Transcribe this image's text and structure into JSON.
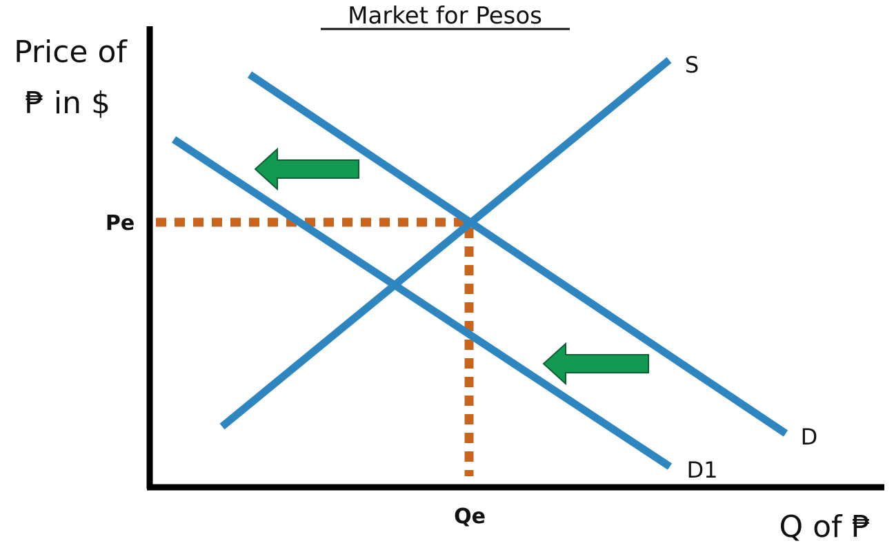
{
  "title": "Market for Pesos",
  "y_axis_title_line1": "Price of",
  "y_axis_title_line2": "₱ in $",
  "x_axis_title": "Q of ₱",
  "equilibrium": {
    "price_label": "Pe",
    "quantity_label": "Qe"
  },
  "curves": {
    "supply_label": "S",
    "demand_label": "D",
    "new_demand_label": "D1"
  },
  "colors": {
    "curve": "#2E86C1",
    "axis": "#000000",
    "guide": "#C8641E",
    "arrow": "#139A52",
    "arrow_outline": "#0C5E33"
  },
  "arrows": {
    "direction": "left",
    "count": 2,
    "meaning": "demand shifts left from D to D1"
  }
}
